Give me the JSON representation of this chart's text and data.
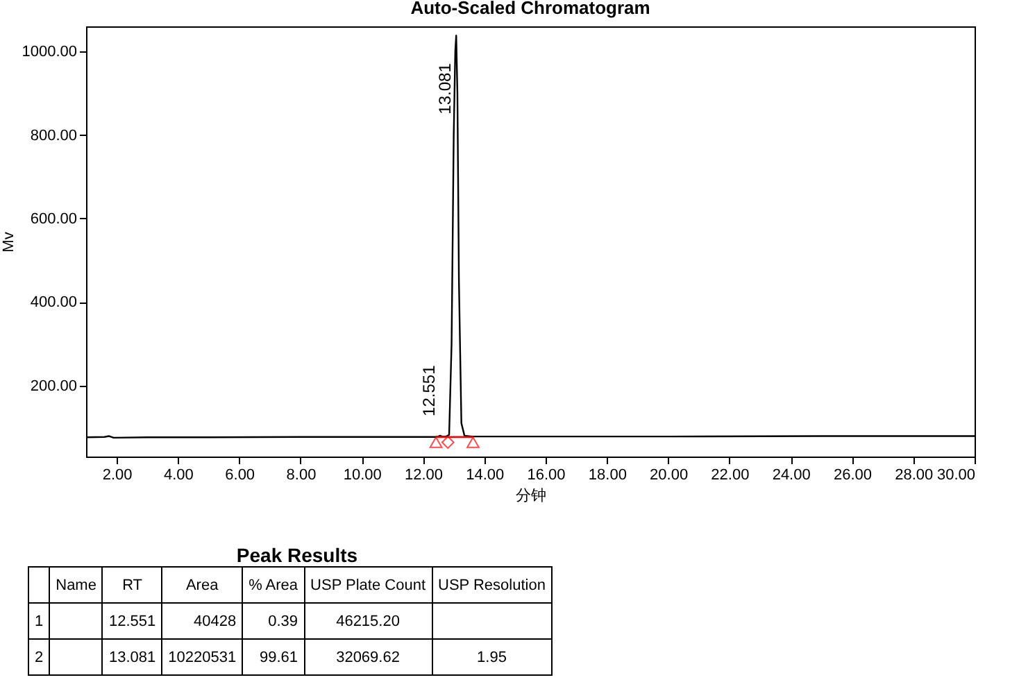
{
  "chart_data": [
    {
      "type": "line",
      "title": "Auto-Scaled Chromatogram",
      "xlabel": "分钟",
      "ylabel": "Mv",
      "xlim": [
        1,
        30
      ],
      "ylim": [
        30,
        1060
      ],
      "xticks": [
        {
          "value": 2,
          "label": "2.00"
        },
        {
          "value": 4,
          "label": "4.00"
        },
        {
          "value": 6,
          "label": "6.00"
        },
        {
          "value": 8,
          "label": "8.00"
        },
        {
          "value": 10,
          "label": "10.00"
        },
        {
          "value": 12,
          "label": "12.00"
        },
        {
          "value": 14,
          "label": "14.00"
        },
        {
          "value": 16,
          "label": "16.00"
        },
        {
          "value": 18,
          "label": "18.00"
        },
        {
          "value": 20,
          "label": "20.00"
        },
        {
          "value": 22,
          "label": "22.00"
        },
        {
          "value": 24,
          "label": "24.00"
        },
        {
          "value": 26,
          "label": "26.00"
        },
        {
          "value": 28,
          "label": "28.00"
        },
        {
          "value": 30,
          "label": "30.00"
        }
      ],
      "yticks": [
        {
          "value": 200,
          "label": "200.00"
        },
        {
          "value": 400,
          "label": "400.00"
        },
        {
          "value": 600,
          "label": "600.00"
        },
        {
          "value": 800,
          "label": "800.00"
        },
        {
          "value": 1000,
          "label": "1000.00"
        }
      ],
      "series": [
        {
          "color": "#000000",
          "x": [
            1,
            1.6,
            1.75,
            1.9,
            3,
            5,
            8,
            10,
            12,
            12.4,
            12.5,
            12.551,
            12.62,
            12.75,
            12.85,
            12.93,
            13.0,
            13.05,
            13.081,
            13.12,
            13.17,
            13.25,
            13.35,
            13.6,
            16,
            20,
            25,
            30
          ],
          "values": [
            76,
            77,
            79,
            75,
            76,
            76,
            77,
            77,
            77,
            77,
            78,
            80,
            78,
            78,
            82,
            300,
            800,
            1000,
            1038,
            900,
            450,
            110,
            80,
            78,
            78,
            78,
            79,
            79
          ]
        },
        {
          "color": "#ff0000",
          "x": [
            12.42,
            13.63
          ],
          "values": [
            77,
            77
          ]
        },
        {
          "type": "scatter",
          "marker": "triangle",
          "color": "#ff0000",
          "x": [
            12.42,
            13.63
          ],
          "values": [
            64,
            64
          ]
        },
        {
          "type": "scatter",
          "marker": "diamond",
          "color": "#ff0000",
          "x": [
            12.81
          ],
          "values": [
            64
          ]
        }
      ],
      "annotations": [
        {
          "text": "13.081",
          "x": 13.081,
          "y": 1038
        },
        {
          "text": "12.551",
          "x": 12.551,
          "y": 80
        }
      ]
    },
    {
      "type": "other",
      "title": "Peak Results",
      "categories": [
        null,
        "Name",
        "RT",
        "Area",
        "% Area",
        "USP Plate Count",
        "USP Resolution"
      ],
      "cell_labels": [
        [
          "1",
          null,
          "12.551",
          "40428",
          "0.39",
          "46215.20",
          null
        ],
        [
          "2",
          null,
          "13.081",
          "10220531",
          "99.61",
          "32069.62",
          "1.95"
        ]
      ]
    }
  ]
}
